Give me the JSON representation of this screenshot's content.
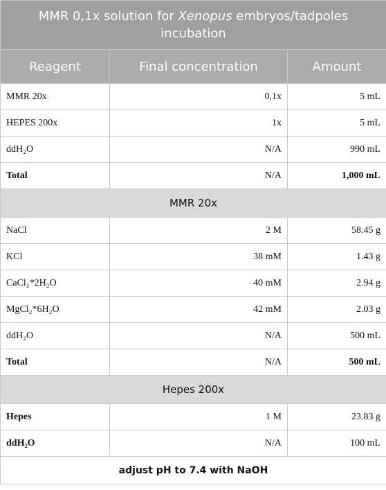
{
  "table": {
    "title": [
      "MMR 0,1x solution for ",
      "Xenopus",
      " embryos/tadpoles incubation"
    ],
    "columns": [
      "Reagent",
      "Final concentration",
      "Amount"
    ],
    "groups": [
      {
        "rows": [
          [
            "MMR 20x",
            "0,1x",
            "5 mL"
          ],
          [
            "HEPES 200x",
            "1x",
            "5 mL"
          ],
          [
            "ddH₂O",
            "N/A",
            "990 mL"
          ],
          [
            "Total",
            "N/A",
            "1,000 mL"
          ]
        ]
      },
      {
        "heading": "MMR 20x",
        "rows": [
          [
            "NaCl",
            "2 M",
            "58.45 g"
          ],
          [
            "KCl",
            "38 mM",
            "1.43 g"
          ],
          [
            "CaCl₂*2H₂O",
            "40 mM",
            "2.94 g"
          ],
          [
            "MgCl₂*6H₂O",
            "42 mM",
            "2.03 g"
          ],
          [
            "ddH₂O",
            "N/A",
            "500 mL"
          ],
          [
            "Total",
            "N/A",
            "500 mL"
          ]
        ]
      },
      {
        "heading": "Hepes 200x",
        "rows": [
          [
            "Hepes",
            "1 M",
            "23.83 g"
          ],
          [
            "ddH₂O",
            "N/A",
            "100 mL"
          ]
        ]
      }
    ],
    "note": "adjust pH to 7.4 with NaOH"
  }
}
